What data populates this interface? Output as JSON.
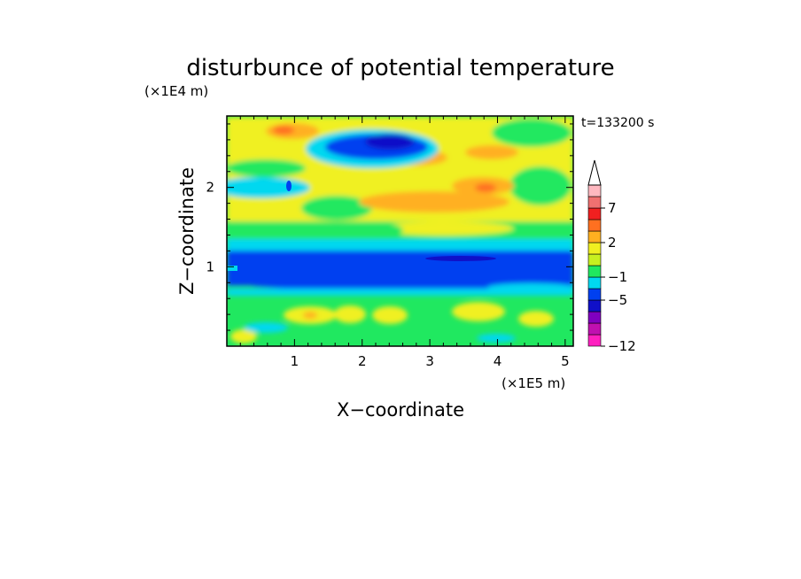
{
  "chart_data": {
    "type": "heatmap",
    "title": "disturbunce of potential temperature",
    "xlabel": "X−coordinate",
    "ylabel": "Z−coordinate",
    "x_scale_label": "(×1E5 m)",
    "y_scale_label": "(×1E4 m)",
    "time_label": "t=133200 s",
    "xlim": [
      0,
      5.12
    ],
    "ylim": [
      0,
      2.9
    ],
    "x_ticks": [
      1,
      2,
      3,
      4,
      5
    ],
    "y_ticks": [
      1,
      2
    ],
    "x_tick_labels": [
      "1",
      "2",
      "3",
      "4",
      "5"
    ],
    "y_tick_labels": [
      "1",
      "2"
    ],
    "colorbar": {
      "levels": [
        -12,
        -11,
        -9,
        -7,
        -5,
        -3,
        -1,
        0,
        1,
        2,
        3,
        5,
        7,
        9,
        11
      ],
      "colors": [
        "#ff20c0",
        "#c010b0",
        "#8000c0",
        "#1010c8",
        "#0040f0",
        "#00d8f0",
        "#20e860",
        "#c8f020",
        "#f0f020",
        "#ffb020",
        "#ff7020",
        "#f02020",
        "#f07070",
        "#ffb8c0"
      ],
      "tick_labels": [
        "7",
        "2",
        "−1",
        "−5",
        "−12"
      ],
      "tick_levels": [
        7,
        2,
        -1,
        -5,
        -12
      ],
      "extend_top": true
    },
    "features": [
      {
        "region": "x 0-5.1, z 0.85-1.3",
        "value": -4
      },
      {
        "region": "x 1.9-2.9, z 2.3-2.8",
        "value": -4
      },
      {
        "region": "x 1.5-5.0, z 1.6-2.4",
        "value": 3
      },
      {
        "region": "x 0.3-4.8, z 0.2-0.5",
        "value": 1.5
      }
    ]
  }
}
